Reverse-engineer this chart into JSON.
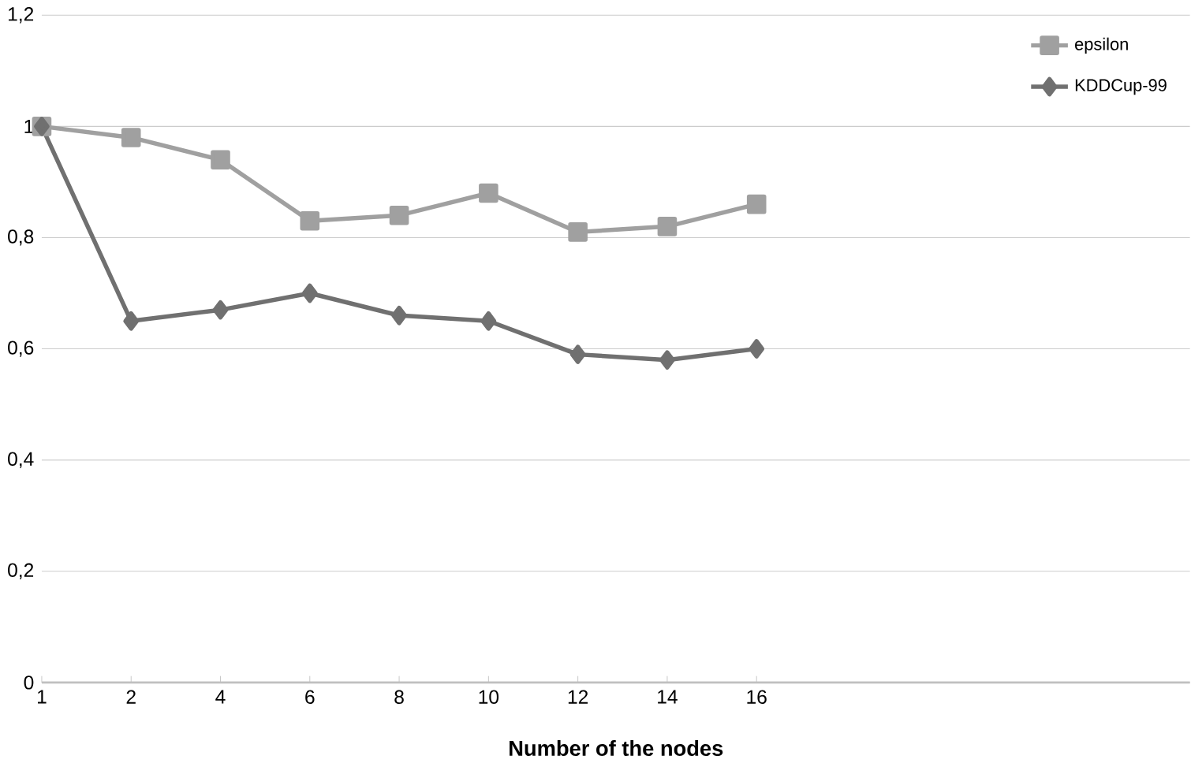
{
  "chart_data": {
    "type": "line",
    "xlabel": "Number of the nodes",
    "categories": [
      "1",
      "2",
      "4",
      "6",
      "8",
      "10",
      "12",
      "14",
      "16"
    ],
    "ylim": [
      0,
      1.2
    ],
    "yticks": [
      {
        "value": 0,
        "label": "0"
      },
      {
        "value": 0.2,
        "label": "0,2"
      },
      {
        "value": 0.4,
        "label": "0,4"
      },
      {
        "value": 0.6,
        "label": "0,6"
      },
      {
        "value": 0.8,
        "label": "0,8"
      },
      {
        "value": 1,
        "label": "1"
      },
      {
        "value": 1.2,
        "label": "1,2"
      }
    ],
    "grid": "y",
    "legend": "top right",
    "line_style": "solid",
    "series": [
      {
        "name": "epsilon",
        "color": "#a0a0a0",
        "marker": "square",
        "values": [
          1.0,
          0.98,
          0.94,
          0.83,
          0.84,
          0.88,
          0.81,
          0.82,
          0.86
        ]
      },
      {
        "name": "KDDCup-99",
        "color": "#707070",
        "marker": "diamond",
        "values": [
          1.0,
          0.65,
          0.67,
          0.7,
          0.66,
          0.65,
          0.59,
          0.58,
          0.6
        ]
      }
    ]
  }
}
